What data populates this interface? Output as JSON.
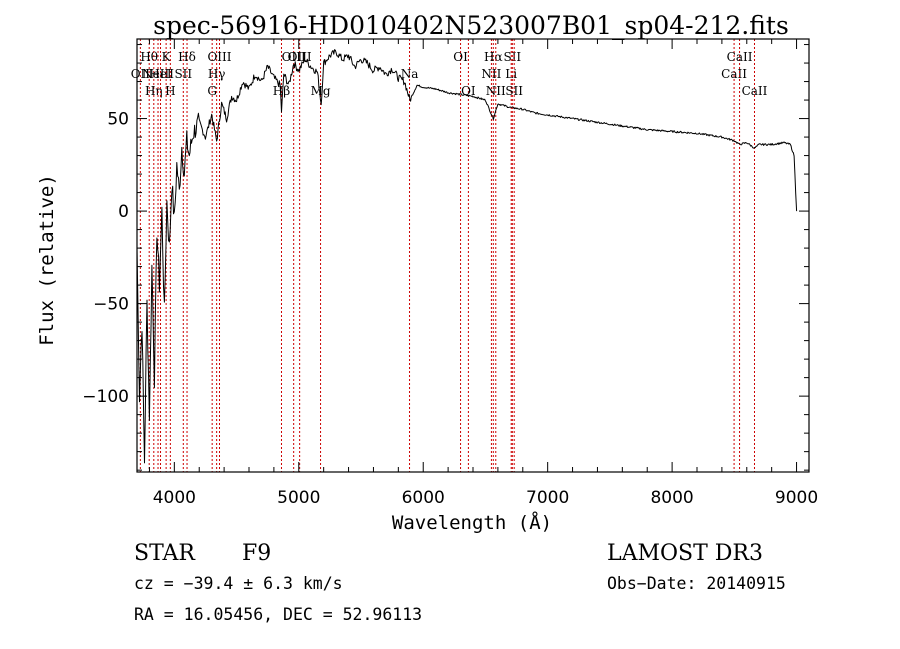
{
  "chart_data": {
    "type": "line",
    "title": "spec-56916-HD010402N523007B01_sp04-212.fits",
    "xlabel": "Wavelength (Å)",
    "ylabel": "Flux (relative)",
    "xlim": [
      3700,
      9100
    ],
    "ylim": [
      -141,
      93
    ],
    "xticks": [
      4000,
      5000,
      6000,
      7000,
      8000,
      9000
    ],
    "yticks": [
      -100,
      -50,
      0,
      50
    ],
    "xtick_labels": [
      "4000",
      "5000",
      "6000",
      "7000",
      "8000",
      "9000"
    ],
    "ytick_labels": [
      "−100",
      "−50",
      "0",
      "50"
    ],
    "series": [
      {
        "name": "flux",
        "x": [
          3700,
          3720,
          3740,
          3760,
          3780,
          3800,
          3820,
          3840,
          3860,
          3880,
          3900,
          3920,
          3940,
          3960,
          3980,
          4000,
          4020,
          4040,
          4060,
          4080,
          4100,
          4120,
          4150,
          4200,
          4250,
          4300,
          4340,
          4380,
          4420,
          4460,
          4500,
          4550,
          4600,
          4650,
          4700,
          4750,
          4800,
          4850,
          4861,
          4880,
          4920,
          4960,
          5000,
          5050,
          5100,
          5150,
          5180,
          5200,
          5250,
          5300,
          5350,
          5400,
          5450,
          5500,
          5550,
          5600,
          5650,
          5700,
          5750,
          5800,
          5850,
          5893,
          5950,
          6000,
          6100,
          6200,
          6300,
          6400,
          6500,
          6563,
          6600,
          6700,
          6800,
          6900,
          7000,
          7200,
          7400,
          7600,
          7800,
          8000,
          8200,
          8400,
          8500,
          8542,
          8600,
          8662,
          8700,
          8800,
          8900,
          8950,
          8980,
          9000
        ],
        "y": [
          -20,
          -100,
          -60,
          -135,
          -50,
          -110,
          -30,
          -90,
          -10,
          -40,
          0,
          -55,
          5,
          -20,
          15,
          -5,
          25,
          10,
          35,
          20,
          38,
          30,
          42,
          48,
          40,
          52,
          38,
          58,
          50,
          62,
          60,
          70,
          66,
          74,
          70,
          78,
          72,
          68,
          54,
          74,
          68,
          80,
          76,
          82,
          78,
          75,
          58,
          80,
          84,
          86,
          82,
          84,
          78,
          82,
          80,
          76,
          78,
          74,
          77,
          72,
          70,
          60,
          68,
          67,
          66,
          64,
          63,
          62,
          60,
          50,
          58,
          56,
          55,
          53,
          52,
          50,
          48,
          46,
          44,
          43,
          42,
          40,
          38,
          36,
          37,
          34,
          36,
          36,
          37,
          36,
          30,
          0
        ]
      }
    ],
    "line_marks": [
      {
        "w": 3727,
        "labels": [
          "OII"
        ],
        "row": 2
      },
      {
        "w": 3798,
        "labels": [
          "Hθ"
        ],
        "row": 1
      },
      {
        "w": 3835,
        "labels": [
          "Hη"
        ],
        "row": 3
      },
      {
        "w": 3869,
        "labels": [
          "NeIII"
        ],
        "row": 2
      },
      {
        "w": 3889,
        "labels": [
          "HeI"
        ],
        "row": 2
      },
      {
        "w": 3934,
        "labels": [
          "K"
        ],
        "row": 1
      },
      {
        "w": 3968,
        "labels": [
          "H"
        ],
        "row": 3
      },
      {
        "w": 4072,
        "labels": [
          "SII"
        ],
        "row": 2
      },
      {
        "w": 4102,
        "labels": [
          "Hδ"
        ],
        "row": 1
      },
      {
        "w": 4304,
        "labels": [
          "G"
        ],
        "row": 3
      },
      {
        "w": 4340,
        "labels": [
          "Hγ"
        ],
        "row": 2
      },
      {
        "w": 4363,
        "labels": [
          "OIII"
        ],
        "row": 1
      },
      {
        "w": 4861,
        "labels": [
          "Hβ"
        ],
        "row": 3
      },
      {
        "w": 4959,
        "labels": [
          "OIII"
        ],
        "row": 1
      },
      {
        "w": 5007,
        "labels": [
          "OIII"
        ],
        "row": 1
      },
      {
        "w": 5175,
        "labels": [
          "Mg"
        ],
        "row": 3
      },
      {
        "w": 5890,
        "labels": [
          "Na"
        ],
        "row": 2
      },
      {
        "w": 6300,
        "labels": [
          "OI"
        ],
        "row": 1
      },
      {
        "w": 6363,
        "labels": [
          "OI"
        ],
        "row": 3
      },
      {
        "w": 6548,
        "labels": [
          "NII"
        ],
        "row": 2
      },
      {
        "w": 6563,
        "labels": [
          "Hα"
        ],
        "row": 1
      },
      {
        "w": 6583,
        "labels": [
          "NII"
        ],
        "row": 3
      },
      {
        "w": 6707,
        "labels": [
          "Li"
        ],
        "row": 2
      },
      {
        "w": 6716,
        "labels": [
          "SII"
        ],
        "row": 1
      },
      {
        "w": 6731,
        "labels": [
          "SII"
        ],
        "row": 3
      },
      {
        "w": 8498,
        "labels": [
          "CaII"
        ],
        "row": 2
      },
      {
        "w": 8542,
        "labels": [
          "CaII"
        ],
        "row": 1
      },
      {
        "w": 8662,
        "labels": [
          "CaII"
        ],
        "row": 3
      }
    ],
    "line_mark_color": "#cc0000",
    "line_color": "#000000"
  },
  "info": {
    "object_class": "STAR",
    "subclass": "F9",
    "survey": "LAMOST DR3",
    "redshift": "cz = −39.4 ± 6.3 km/s",
    "obs_date": "Obs−Date: 20140915",
    "coords": "RA =  16.05456, DEC =  52.96113"
  }
}
